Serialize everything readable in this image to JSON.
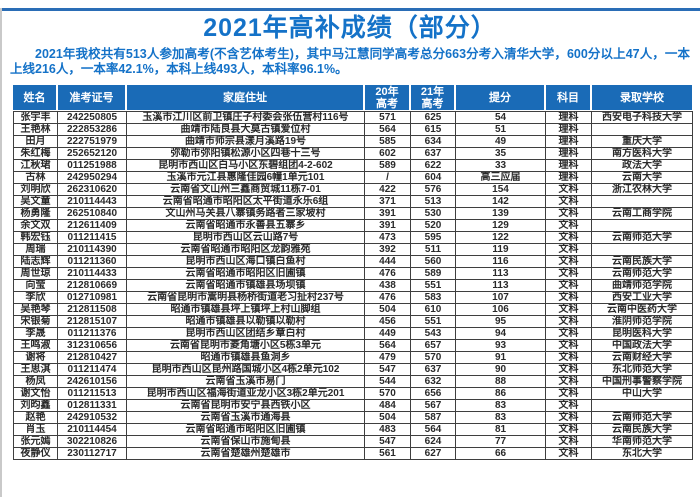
{
  "page": {
    "title": "2021年高补成绩（部分）",
    "intro": "2021年我校共有513人参加高考(不含艺体考生)，其中马江慧同学高考总分663分考入清华大学，600分以上47人，一本上线216人，一本率42.1%，本科上线493人，本科率96.1%。"
  },
  "colors": {
    "accent_blue": "#1472c8",
    "table_header_bg": "#1a6bb7",
    "grid_border": "#3f3f3f"
  },
  "table": {
    "columns": [
      {
        "key": "name",
        "label": "姓名"
      },
      {
        "key": "exam_id",
        "label": "准考证号"
      },
      {
        "key": "address",
        "label": "家庭住址"
      },
      {
        "key": "score_2020",
        "label": "20年\n高考"
      },
      {
        "key": "score_2021",
        "label": "21年\n高考"
      },
      {
        "key": "gain",
        "label": "提分"
      },
      {
        "key": "subject",
        "label": "科目"
      },
      {
        "key": "school",
        "label": "录取学校"
      }
    ],
    "rows": [
      [
        "张宇丰",
        "242250805",
        "玉溪市江川区前卫镇庄子村委会张伍营村116号",
        "571",
        "625",
        "54",
        "理科",
        "西安电子科技大学"
      ],
      [
        "王艳林",
        "222853286",
        "曲靖市陆良县大莫古镇爱位村",
        "564",
        "615",
        "51",
        "理科",
        ""
      ],
      [
        "田月",
        "222751979",
        "曲靖市师宗县漾月溪路19号",
        "585",
        "634",
        "49",
        "理科",
        "重庆大学"
      ],
      [
        "朱红梅",
        "252652120",
        "弥勒市弥阳镇松源小区四巷十三号",
        "602",
        "637",
        "35",
        "理科",
        "南方医科大学"
      ],
      [
        "江秋珺",
        "011251988",
        "昆明市西山区白马小区东碧组团4-2-602",
        "589",
        "622",
        "33",
        "理科",
        "政法大学"
      ],
      [
        "古林",
        "242950294",
        "玉溪市元江县惠隆佳园6幢1单元101",
        "/",
        "604",
        "高三应届",
        "理科",
        "云南大学"
      ],
      [
        "刘明欣",
        "262310620",
        "云南省文山州三鑫商贸城11栋7-01",
        "422",
        "576",
        "154",
        "文科",
        "浙江农林大学"
      ],
      [
        "吴文童",
        "210114443",
        "云南省昭通市昭阳区太平街道永乐6组",
        "371",
        "513",
        "142",
        "文科",
        ""
      ],
      [
        "杨勇隆",
        "262510840",
        "文山州马关县八寨镇务路者三家坡村",
        "391",
        "530",
        "139",
        "文科",
        "云南工商学院"
      ],
      [
        "余文双",
        "212611409",
        "云南省昭通市永善县五寨乡",
        "391",
        "520",
        "129",
        "文科",
        ""
      ],
      [
        "韩宏钰",
        "011211415",
        "昆明市西山区云山路7号",
        "473",
        "595",
        "122",
        "文科",
        "云南师范大学"
      ],
      [
        "周瑞",
        "210114390",
        "云南省昭通市昭阳区龙韵雅苑",
        "392",
        "511",
        "119",
        "文科",
        ""
      ],
      [
        "陆志辉",
        "011211360",
        "昆明市西山区海口镇白鱼村",
        "444",
        "560",
        "116",
        "文科",
        "云南民族大学"
      ],
      [
        "周世琼",
        "210114433",
        "云南省昭通市昭阳区旧圃镇",
        "476",
        "589",
        "113",
        "文科",
        "云南师范大学"
      ],
      [
        "向莹",
        "212810669",
        "云南省昭通市镇雄县场坝镇",
        "438",
        "551",
        "113",
        "文科",
        "曲靖师范学院"
      ],
      [
        "李欣",
        "012710981",
        "云南省昆明市嵩明县杨桥街道老习扯村237号",
        "476",
        "583",
        "107",
        "文科",
        "西安工业大学"
      ],
      [
        "吴艳琴",
        "212811508",
        "昭通市镇雄县坪上镇坪上村山脚组",
        "504",
        "610",
        "106",
        "文科",
        "云南中医药大学"
      ],
      [
        "宋银菊",
        "212815107",
        "昭通市镇雄县以勒镇以勒村",
        "456",
        "551",
        "95",
        "文科",
        "淮阴师范学院"
      ],
      [
        "李晟",
        "011211376",
        "昆明市西山区团结乡章白村",
        "449",
        "543",
        "94",
        "文科",
        "昆明医科大学"
      ],
      [
        "王鸣淑",
        "312310656",
        "云南省昆明市菱角塘小区5栋3单元",
        "564",
        "657",
        "93",
        "文科",
        "中国政法大学"
      ],
      [
        "谢将",
        "212810427",
        "昭通市镇雄县鱼洞乡",
        "479",
        "570",
        "91",
        "文科",
        "云南财经大学"
      ],
      [
        "王思淇",
        "011211474",
        "昆明市西山区昆州路国城小区4栋2单元102",
        "547",
        "637",
        "90",
        "文科",
        "东北师范大学"
      ],
      [
        "杨凤",
        "242610156",
        "云南省玉溪市易门",
        "544",
        "632",
        "88",
        "文科",
        "中国刑事警察学院"
      ],
      [
        "谢文怡",
        "011211513",
        "昆明市西山区福海街道亚龙小区3栋2单元201",
        "570",
        "656",
        "86",
        "文科",
        "中山大学"
      ],
      [
        "刘昀鑫",
        "012811331",
        "云南省昆明市安宁县西铁小区",
        "484",
        "567",
        "83",
        "文科",
        ""
      ],
      [
        "赵艳",
        "242910532",
        "云南省玉溪市通海县",
        "504",
        "587",
        "83",
        "文科",
        "云南师范大学"
      ],
      [
        "肖玉",
        "210114454",
        "云南省昭通市昭阳区旧圃镇",
        "483",
        "564",
        "81",
        "文科",
        "云南民族大学"
      ],
      [
        "张元嫣",
        "302210826",
        "云南省保山市施甸县",
        "547",
        "624",
        "77",
        "文科",
        "华南师范大学"
      ],
      [
        "夜静仪",
        "230112717",
        "云南省楚雄州楚雄市",
        "561",
        "627",
        "66",
        "文科",
        "东北大学"
      ]
    ]
  }
}
